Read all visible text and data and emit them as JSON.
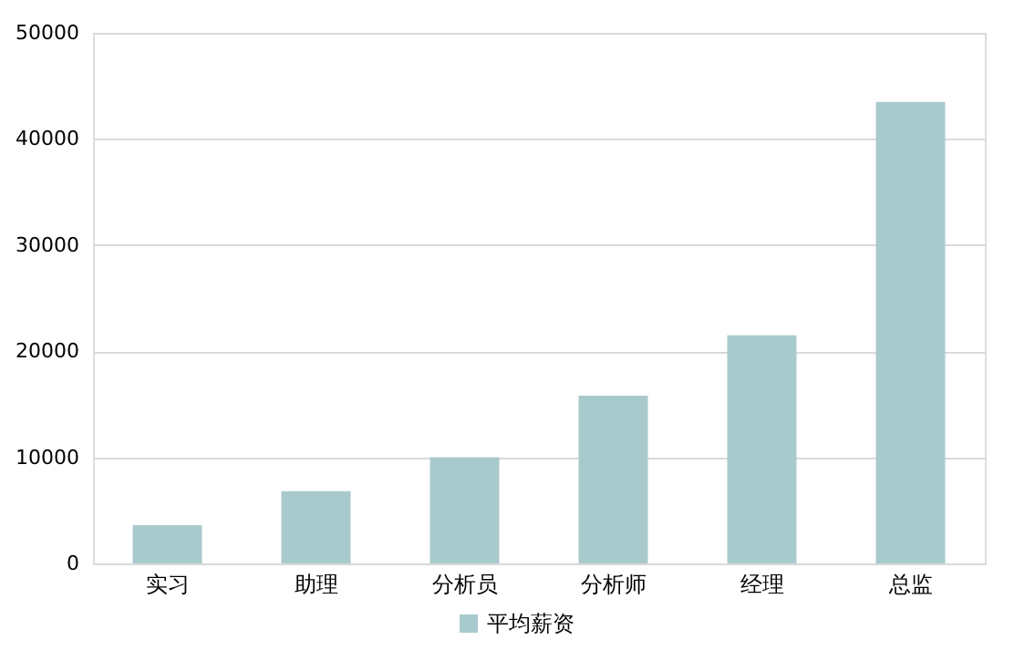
{
  "chart_data": {
    "type": "bar",
    "categories": [
      "实习",
      "助理",
      "分析员",
      "分析师",
      "经理",
      "总监"
    ],
    "series": [
      {
        "name": "平均薪资",
        "color": "#a9cacd",
        "values": [
          3600,
          6800,
          10000,
          15800,
          21500,
          43500
        ]
      }
    ],
    "ylim": [
      0,
      50000
    ],
    "yticks": [
      0,
      10000,
      20000,
      30000,
      40000,
      50000
    ],
    "grid": "y",
    "legend": "bottom"
  }
}
